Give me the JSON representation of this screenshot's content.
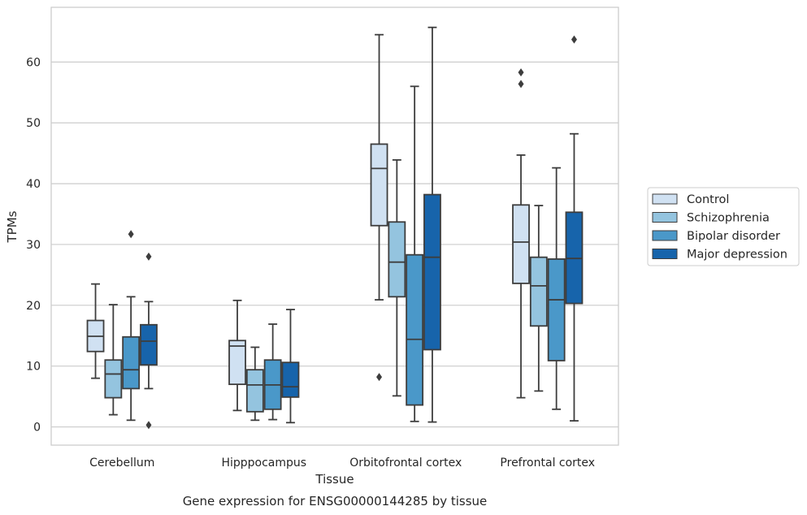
{
  "chart_data": {
    "type": "box",
    "title": "",
    "caption": "Gene expression for ENSG00000144285 by tissue",
    "xlabel": "Tissue",
    "ylabel": "TPMs",
    "ylim": [
      -3,
      69
    ],
    "yticks": [
      0,
      10,
      20,
      30,
      40,
      50,
      60
    ],
    "grid": "y",
    "legend_position": "right",
    "categories": [
      "Cerebellum",
      "Hipppocampus",
      "Orbitofrontal cortex",
      "Prefrontal cortex"
    ],
    "series": [
      {
        "name": "Control",
        "color": "#d0e1f2",
        "boxes": [
          {
            "whisker_low": 8,
            "q1": 12.4,
            "median": 14.9,
            "q3": 17.5,
            "whisker_high": 23.5,
            "outliers": []
          },
          {
            "whisker_low": 2.7,
            "q1": 7,
            "median": 13.3,
            "q3": 14.2,
            "whisker_high": 20.8,
            "outliers": []
          },
          {
            "whisker_low": 20.9,
            "q1": 33.1,
            "median": 42.5,
            "q3": 46.5,
            "whisker_high": 64.5,
            "outliers": [
              8.2
            ]
          },
          {
            "whisker_low": 4.8,
            "q1": 23.6,
            "median": 30.4,
            "q3": 36.5,
            "whisker_high": 44.7,
            "outliers": [
              56.4,
              58.3
            ]
          }
        ]
      },
      {
        "name": "Schizophrenia",
        "color": "#94c4df",
        "boxes": [
          {
            "whisker_low": 2,
            "q1": 4.8,
            "median": 8.7,
            "q3": 11,
            "whisker_high": 20.1,
            "outliers": []
          },
          {
            "whisker_low": 1.1,
            "q1": 2.5,
            "median": 6.9,
            "q3": 9.4,
            "whisker_high": 13.1,
            "outliers": []
          },
          {
            "whisker_low": 5.1,
            "q1": 21.4,
            "median": 27.1,
            "q3": 33.7,
            "whisker_high": 43.9,
            "outliers": []
          },
          {
            "whisker_low": 5.9,
            "q1": 16.6,
            "median": 23.2,
            "q3": 27.9,
            "whisker_high": 36.4,
            "outliers": []
          }
        ]
      },
      {
        "name": "Bipolar disorder",
        "color": "#4a98c9",
        "boxes": [
          {
            "whisker_low": 1.1,
            "q1": 6.3,
            "median": 9.4,
            "q3": 14.8,
            "whisker_high": 21.4,
            "outliers": [
              31.7
            ]
          },
          {
            "whisker_low": 1.2,
            "q1": 2.9,
            "median": 6.9,
            "q3": 11,
            "whisker_high": 16.9,
            "outliers": []
          },
          {
            "whisker_low": 0.9,
            "q1": 3.6,
            "median": 14.4,
            "q3": 28.3,
            "whisker_high": 56,
            "outliers": []
          },
          {
            "whisker_low": 2.9,
            "q1": 10.9,
            "median": 20.9,
            "q3": 27.6,
            "whisker_high": 42.6,
            "outliers": []
          }
        ]
      },
      {
        "name": "Major depression",
        "color": "#1764ab",
        "boxes": [
          {
            "whisker_low": 6.3,
            "q1": 10.2,
            "median": 14.1,
            "q3": 16.8,
            "whisker_high": 20.6,
            "outliers": [
              0.3,
              28
            ]
          },
          {
            "whisker_low": 0.7,
            "q1": 4.9,
            "median": 6.6,
            "q3": 10.6,
            "whisker_high": 19.3,
            "outliers": []
          },
          {
            "whisker_low": 0.8,
            "q1": 12.7,
            "median": 27.9,
            "q3": 38.2,
            "whisker_high": 65.7,
            "outliers": []
          },
          {
            "whisker_low": 1,
            "q1": 20.3,
            "median": 27.7,
            "q3": 35.3,
            "whisker_high": 48.2,
            "outliers": [
              63.7
            ]
          }
        ]
      }
    ]
  }
}
